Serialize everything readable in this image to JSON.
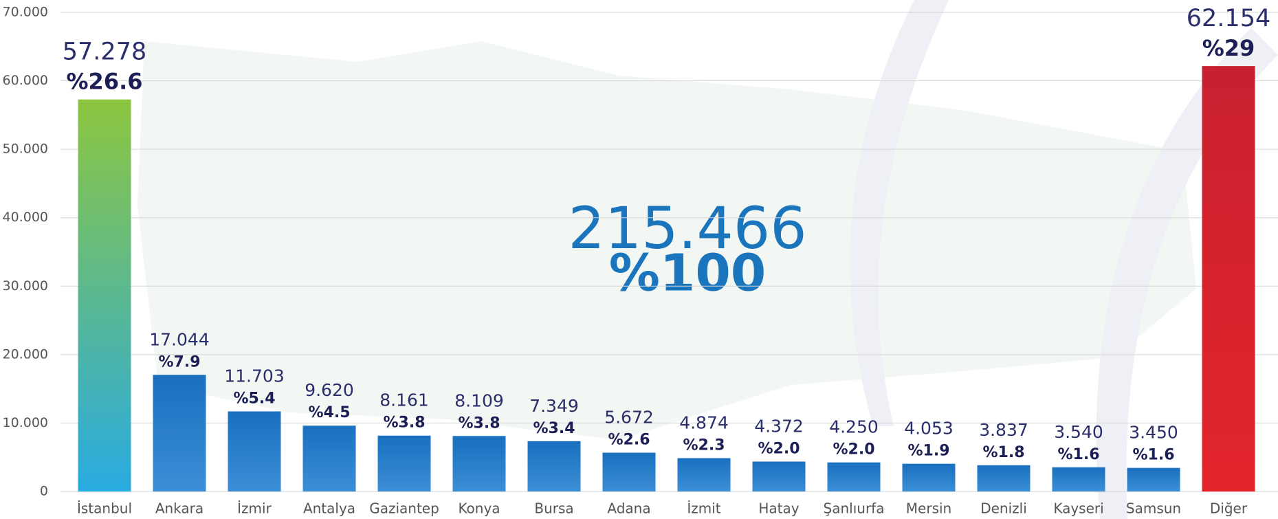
{
  "chart_data": {
    "type": "bar",
    "categories": [
      "İstanbul",
      "Ankara",
      "İzmir",
      "Antalya",
      "Gaziantep",
      "Konya",
      "Bursa",
      "Adana",
      "İzmit",
      "Hatay",
      "Şanlıurfa",
      "Mersin",
      "Denizli",
      "Kayseri",
      "Samsun",
      "Diğer"
    ],
    "values": [
      57278,
      17044,
      11703,
      9620,
      8161,
      8109,
      7349,
      5672,
      4874,
      4372,
      4250,
      4053,
      3837,
      3540,
      3450,
      62154
    ],
    "value_labels": [
      "57.278",
      "17.044",
      "11.703",
      "9.620",
      "8.161",
      "8.109",
      "7.349",
      "5.672",
      "4.874",
      "4.372",
      "4.250",
      "4.053",
      "3.837",
      "3.540",
      "3.450",
      "62.154"
    ],
    "shares": [
      26.6,
      7.9,
      5.4,
      4.5,
      3.8,
      3.8,
      3.4,
      2.6,
      2.3,
      2.0,
      2.0,
      1.9,
      1.8,
      1.6,
      1.6,
      29
    ],
    "share_labels": [
      "%26.6",
      "%7.9",
      "%5.4",
      "%4.5",
      "%3.8",
      "%3.8",
      "%3.4",
      "%2.6",
      "%2.3",
      "%2.0",
      "%2.0",
      "%1.9",
      "%1.8",
      "%1.6",
      "%1.6",
      "%29"
    ],
    "colors": [
      [
        "#8dc63f",
        "#29abe2"
      ],
      [
        "#1a6fbf",
        "#3b8fd6"
      ],
      [
        "#1a6fbf",
        "#3b8fd6"
      ],
      [
        "#1a6fbf",
        "#3b8fd6"
      ],
      [
        "#1a6fbf",
        "#3b8fd6"
      ],
      [
        "#1a6fbf",
        "#3b8fd6"
      ],
      [
        "#1a6fbf",
        "#3b8fd6"
      ],
      [
        "#1a6fbf",
        "#3b8fd6"
      ],
      [
        "#1a6fbf",
        "#3b8fd6"
      ],
      [
        "#1a6fbf",
        "#3b8fd6"
      ],
      [
        "#1a6fbf",
        "#3b8fd6"
      ],
      [
        "#1a6fbf",
        "#3b8fd6"
      ],
      [
        "#1a6fbf",
        "#3b8fd6"
      ],
      [
        "#1a6fbf",
        "#3b8fd6"
      ],
      [
        "#1a6fbf",
        "#3b8fd6"
      ],
      [
        "#c8202f",
        "#e3242b"
      ]
    ],
    "ylim": [
      0,
      70000
    ],
    "yticks": [
      0,
      {
        "value": 10000,
        "label": "10.000"
      },
      {
        "value": 20000,
        "label": "20.000"
      },
      {
        "value": 30000,
        "label": "30.000"
      },
      {
        "value": 40000,
        "label": "40.000"
      },
      {
        "value": 50000,
        "label": "50.000"
      },
      {
        "value": 60000,
        "label": "60.000"
      },
      {
        "value": 70000,
        "label": "70.000"
      }
    ],
    "grid": true,
    "annotations": [
      "215.466",
      "%100"
    ]
  }
}
